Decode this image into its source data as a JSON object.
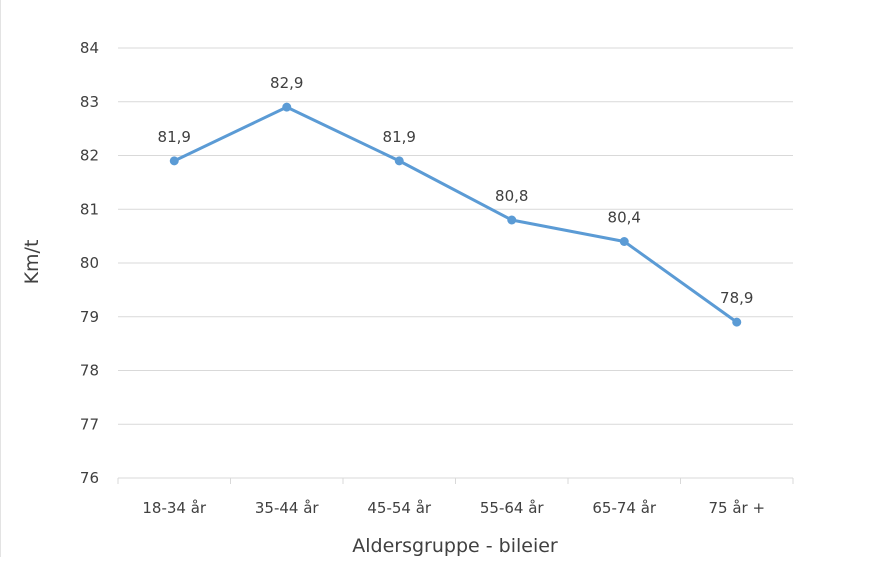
{
  "chart_data": {
    "type": "line",
    "categories": [
      "18-34 år",
      "35-44 år",
      "45-54 år",
      "55-64 år",
      "65-74 år",
      "75 år +"
    ],
    "series": [
      {
        "values": [
          81.9,
          82.9,
          81.9,
          80.8,
          80.4,
          78.9
        ]
      }
    ],
    "data_labels": [
      "81,9",
      "82,9",
      "81,9",
      "80,8",
      "80,4",
      "78,9"
    ],
    "y_ticks": [
      "76",
      "77",
      "78",
      "79",
      "80",
      "81",
      "82",
      "83",
      "84"
    ],
    "ylim": [
      76,
      84
    ],
    "xlabel": "Aldersgruppe - bileier",
    "ylabel": "Km/t",
    "grid": "horizontal",
    "colors": {
      "line": "#5b9bd5",
      "grid": "#d9d9d9",
      "text": "#404040"
    }
  }
}
